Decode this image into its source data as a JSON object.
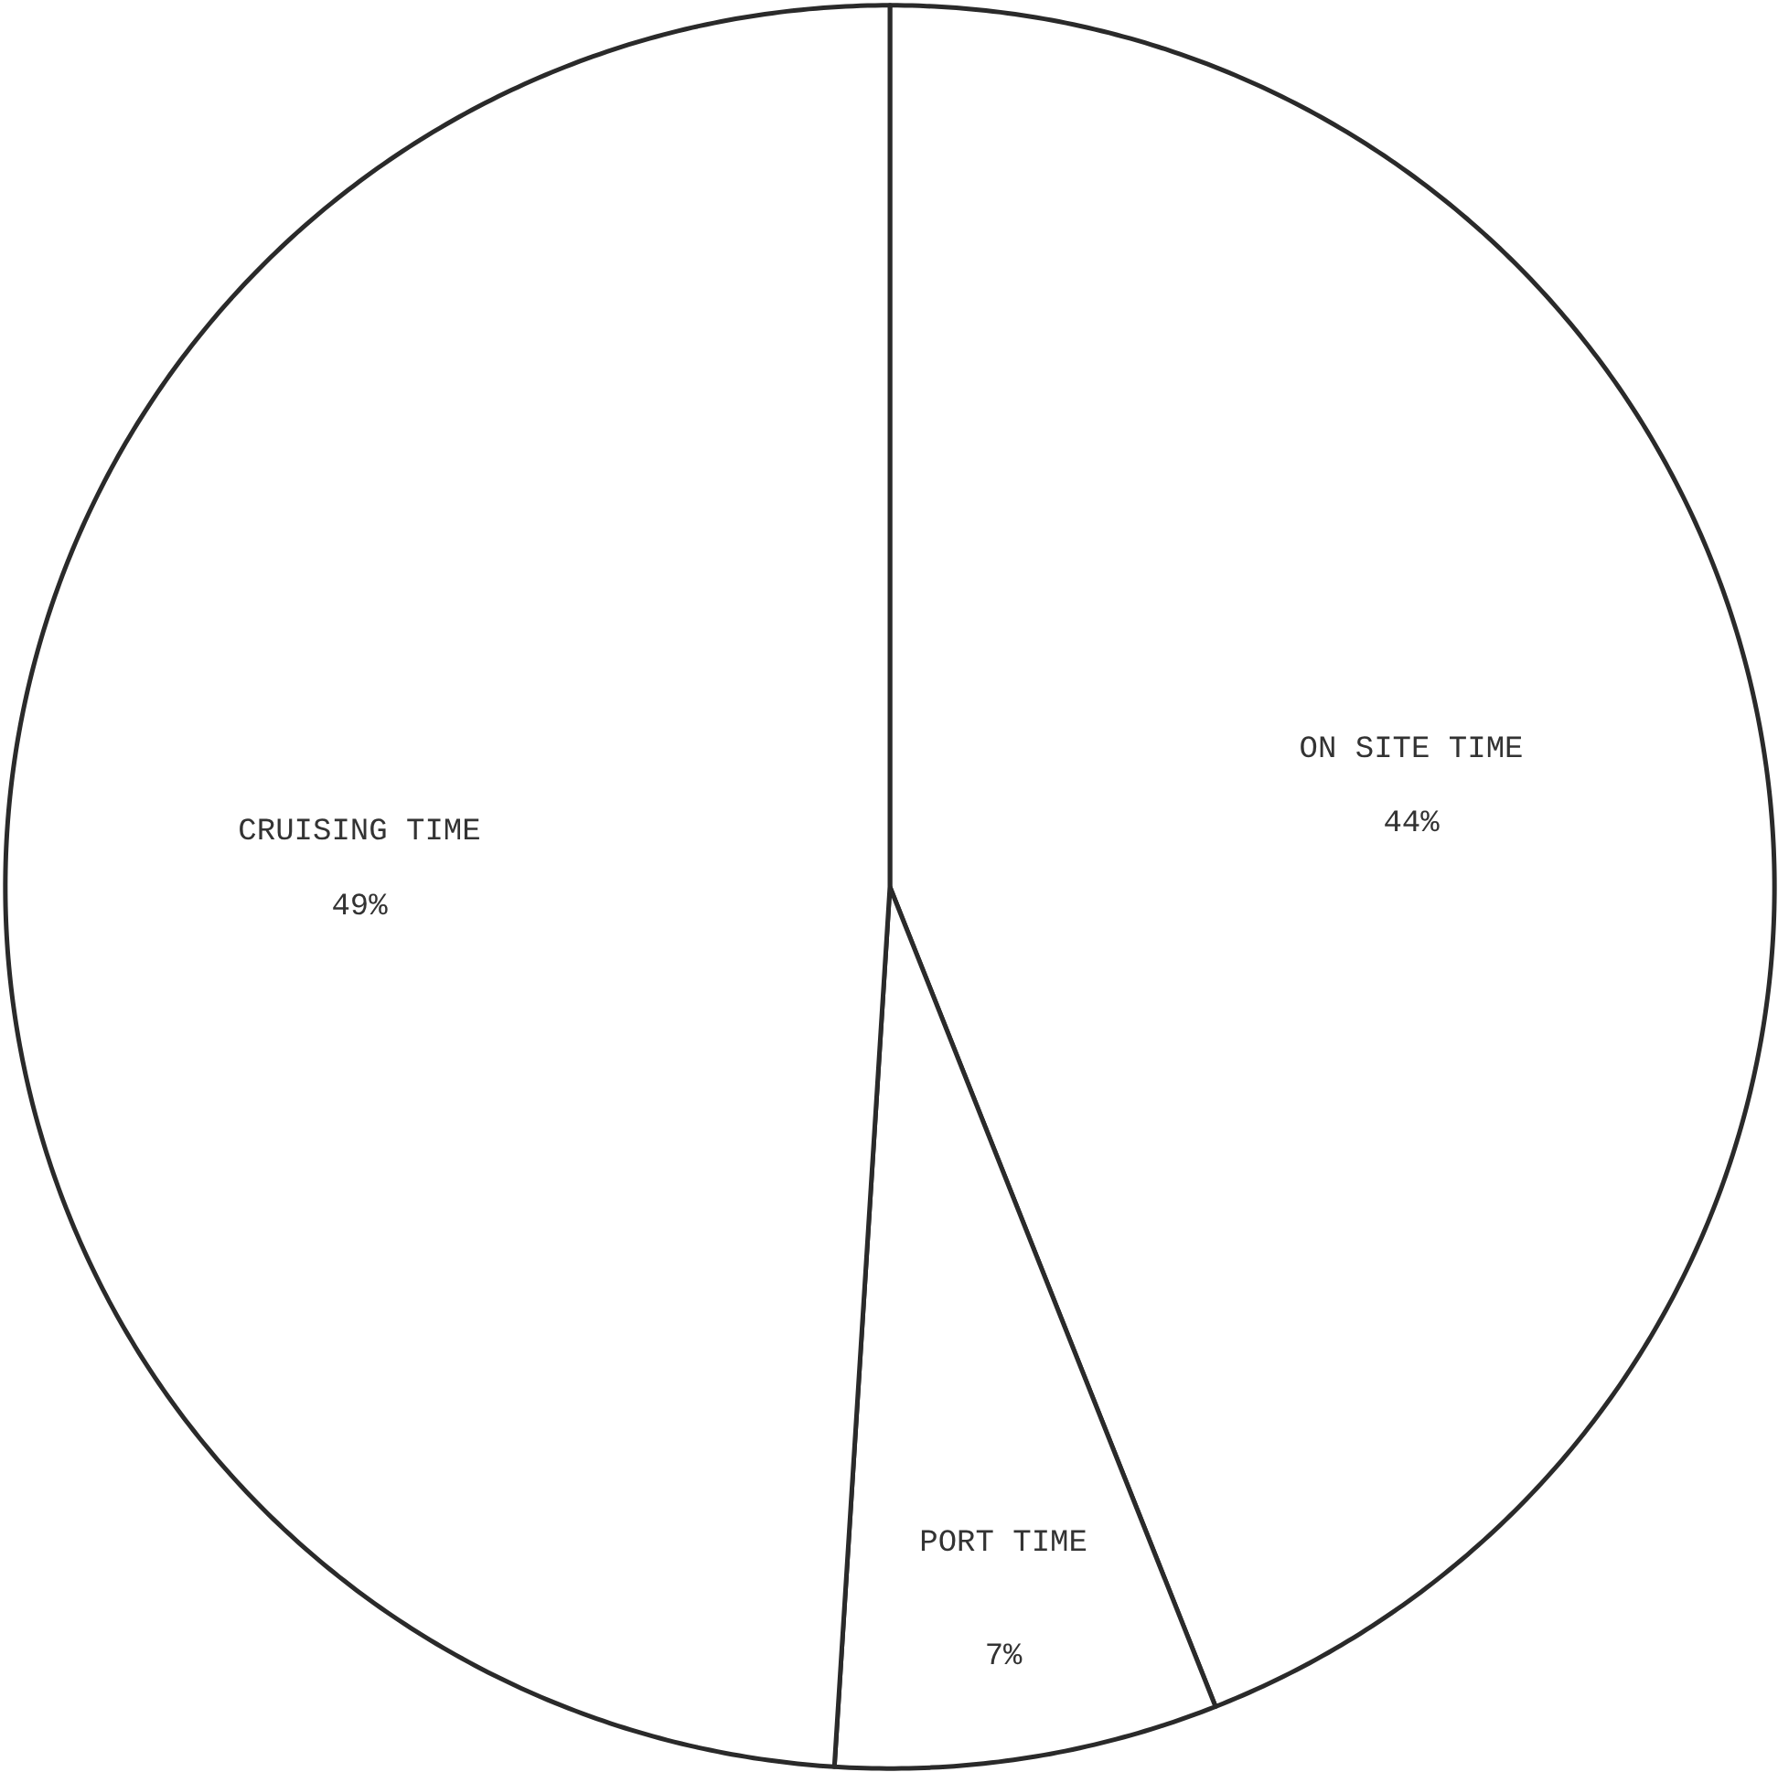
{
  "chart_data": {
    "type": "pie",
    "categories": [
      "ON SITE TIME",
      "PORT TIME",
      "CRUISING TIME"
    ],
    "values": [
      44,
      7,
      49
    ],
    "value_labels": [
      "44%",
      "7%",
      "49%"
    ],
    "colors": [
      "#ffffff",
      "#ffffff",
      "#ffffff"
    ]
  }
}
